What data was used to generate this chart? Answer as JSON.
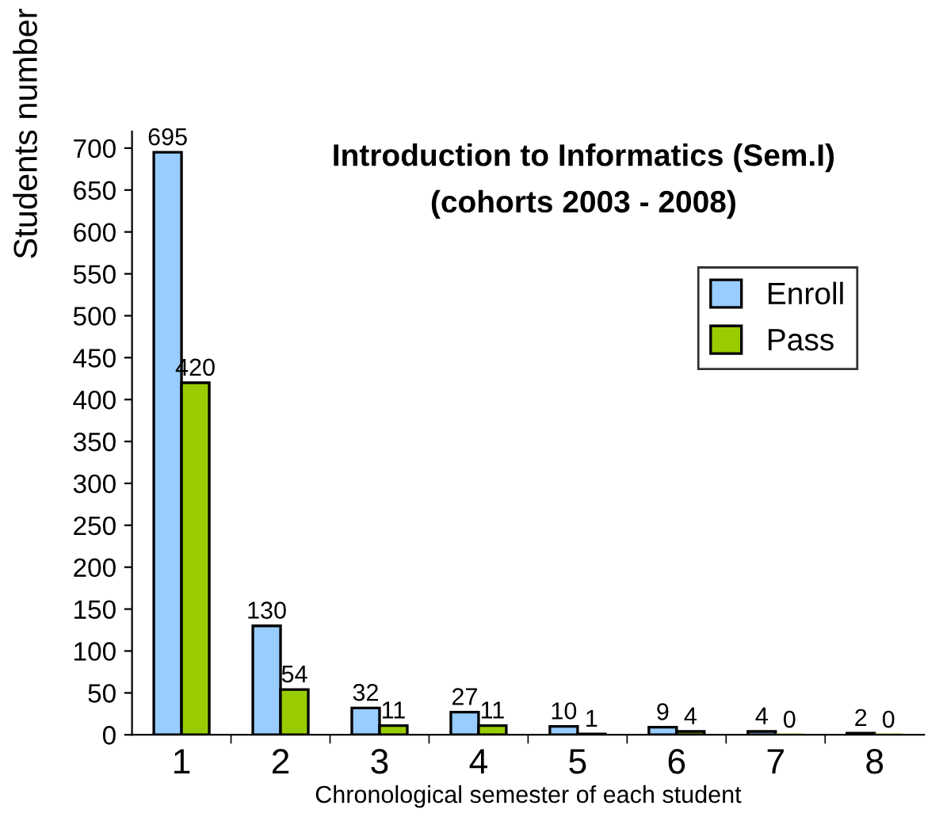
{
  "chart_data": {
    "type": "bar",
    "title": "Introduction to Informatics (Sem.I)\n(cohorts 2003 - 2008)",
    "xlabel": "Chronological semester of each student",
    "ylabel": "Students number",
    "categories": [
      "1",
      "2",
      "3",
      "4",
      "5",
      "6",
      "7",
      "8"
    ],
    "series": [
      {
        "name": "Enroll",
        "color": "#99ccff",
        "values": [
          695,
          130,
          32,
          27,
          10,
          9,
          4,
          2
        ]
      },
      {
        "name": "Pass",
        "color": "#99cc00",
        "values": [
          420,
          54,
          11,
          11,
          1,
          4,
          0,
          0
        ]
      }
    ],
    "ylim": [
      0,
      720
    ],
    "yticks": [
      0,
      50,
      100,
      150,
      200,
      250,
      300,
      350,
      400,
      450,
      500,
      550,
      600,
      650,
      700
    ],
    "data_labels": true,
    "grid": false,
    "legend": "top right"
  }
}
